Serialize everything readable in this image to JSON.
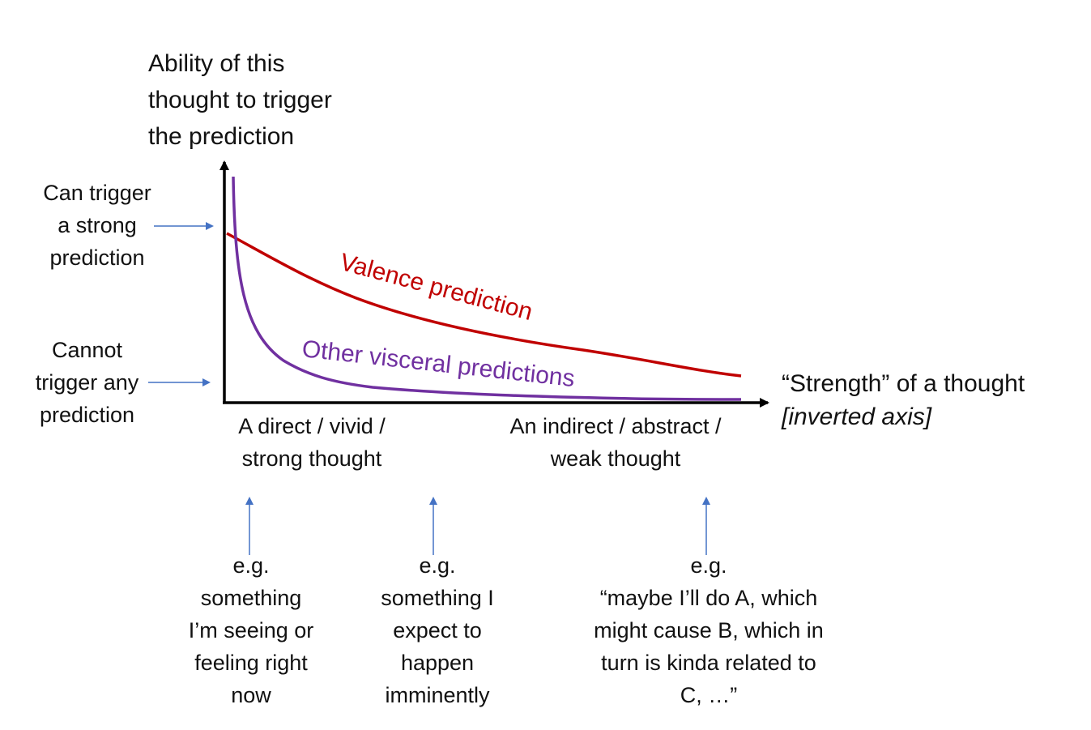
{
  "y_axis_label": [
    "Ability of this",
    "thought to trigger",
    "the prediction"
  ],
  "x_axis_label": {
    "main": "“Strength” of a thought",
    "note": "[inverted axis]"
  },
  "y_ticks": {
    "strong": [
      "Can trigger",
      "a strong",
      "prediction"
    ],
    "none": [
      "Cannot",
      "trigger any",
      "prediction"
    ]
  },
  "x_ticks": {
    "left": [
      "A direct / vivid /",
      "strong thought"
    ],
    "right": [
      "An indirect / abstract /",
      "weak thought"
    ]
  },
  "curves": {
    "valence": {
      "label": "Valence prediction",
      "color": "#c00000"
    },
    "visceral": {
      "label": "Other visceral predictions",
      "color": "#7030a0"
    }
  },
  "examples": [
    {
      "lines": [
        "e.g.",
        "something",
        "I’m seeing or",
        "feeling right",
        "now"
      ]
    },
    {
      "lines": [
        "e.g.",
        "something I",
        "expect to",
        "happen",
        "imminently"
      ]
    },
    {
      "lines": [
        "e.g.",
        "“maybe I’ll do A, which",
        "might cause B, which in",
        "turn is kinda related to",
        "C, …”"
      ]
    }
  ],
  "colors": {
    "axis": "#000000",
    "pointer_arrow": "#4472c4"
  }
}
